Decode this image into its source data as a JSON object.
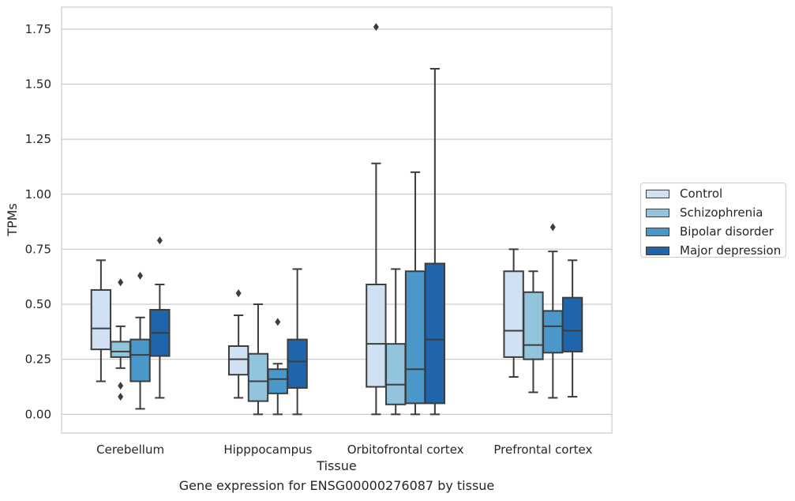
{
  "chart_data": {
    "type": "box",
    "xlabel": "Tissue",
    "ylabel": "TPMs",
    "caption": "Gene expression for ENSG00000276087 by tissue",
    "ylim": [
      -0.085,
      1.85
    ],
    "yticks": [
      "0.00",
      "0.25",
      "0.50",
      "0.75",
      "1.00",
      "1.25",
      "1.50",
      "1.75"
    ],
    "ytick_values": [
      0,
      0.25,
      0.5,
      0.75,
      1.0,
      1.25,
      1.5,
      1.75
    ],
    "grid": true,
    "legend_position": "outside-right",
    "categories": [
      "Cerebellum",
      "Hipppocampus",
      "Orbitofrontal cortex",
      "Prefrontal cortex"
    ],
    "series": [
      {
        "name": "Control",
        "color": "#cfe1f2",
        "boxes": [
          {
            "whislo": 0.15,
            "q1": 0.295,
            "med": 0.39,
            "q3": 0.565,
            "whishi": 0.7,
            "fliers": []
          },
          {
            "whislo": 0.075,
            "q1": 0.18,
            "med": 0.25,
            "q3": 0.31,
            "whishi": 0.45,
            "fliers": [
              0.55
            ]
          },
          {
            "whislo": 0.0,
            "q1": 0.125,
            "med": 0.32,
            "q3": 0.59,
            "whishi": 1.14,
            "fliers": [
              1.76
            ]
          },
          {
            "whislo": 0.17,
            "q1": 0.26,
            "med": 0.38,
            "q3": 0.65,
            "whishi": 0.75,
            "fliers": []
          }
        ]
      },
      {
        "name": "Schizophrenia",
        "color": "#93c4de",
        "boxes": [
          {
            "whislo": 0.21,
            "q1": 0.26,
            "med": 0.285,
            "q3": 0.33,
            "whishi": 0.4,
            "fliers": [
              0.6,
              0.13,
              0.08
            ]
          },
          {
            "whislo": 0.0,
            "q1": 0.06,
            "med": 0.15,
            "q3": 0.275,
            "whishi": 0.5,
            "fliers": []
          },
          {
            "whislo": 0.0,
            "q1": 0.045,
            "med": 0.135,
            "q3": 0.32,
            "whishi": 0.66,
            "fliers": []
          },
          {
            "whislo": 0.1,
            "q1": 0.25,
            "med": 0.315,
            "q3": 0.555,
            "whishi": 0.65,
            "fliers": []
          }
        ]
      },
      {
        "name": "Bipolar disorder",
        "color": "#4a98c9",
        "boxes": [
          {
            "whislo": 0.025,
            "q1": 0.15,
            "med": 0.27,
            "q3": 0.34,
            "whishi": 0.44,
            "fliers": [
              0.63
            ]
          },
          {
            "whislo": 0.0,
            "q1": 0.095,
            "med": 0.16,
            "q3": 0.205,
            "whishi": 0.23,
            "fliers": [
              0.42
            ]
          },
          {
            "whislo": 0.0,
            "q1": 0.05,
            "med": 0.205,
            "q3": 0.65,
            "whishi": 1.1,
            "fliers": []
          },
          {
            "whislo": 0.075,
            "q1": 0.28,
            "med": 0.4,
            "q3": 0.47,
            "whishi": 0.74,
            "fliers": [
              0.85
            ]
          }
        ]
      },
      {
        "name": "Major depression",
        "color": "#1f65ab",
        "boxes": [
          {
            "whislo": 0.075,
            "q1": 0.265,
            "med": 0.37,
            "q3": 0.475,
            "whishi": 0.59,
            "fliers": [
              0.79
            ]
          },
          {
            "whislo": 0.0,
            "q1": 0.12,
            "med": 0.24,
            "q3": 0.34,
            "whishi": 0.66,
            "fliers": []
          },
          {
            "whislo": 0.0,
            "q1": 0.05,
            "med": 0.34,
            "q3": 0.685,
            "whishi": 1.57,
            "fliers": []
          },
          {
            "whislo": 0.08,
            "q1": 0.285,
            "med": 0.38,
            "q3": 0.53,
            "whishi": 0.7,
            "fliers": []
          }
        ]
      }
    ]
  }
}
